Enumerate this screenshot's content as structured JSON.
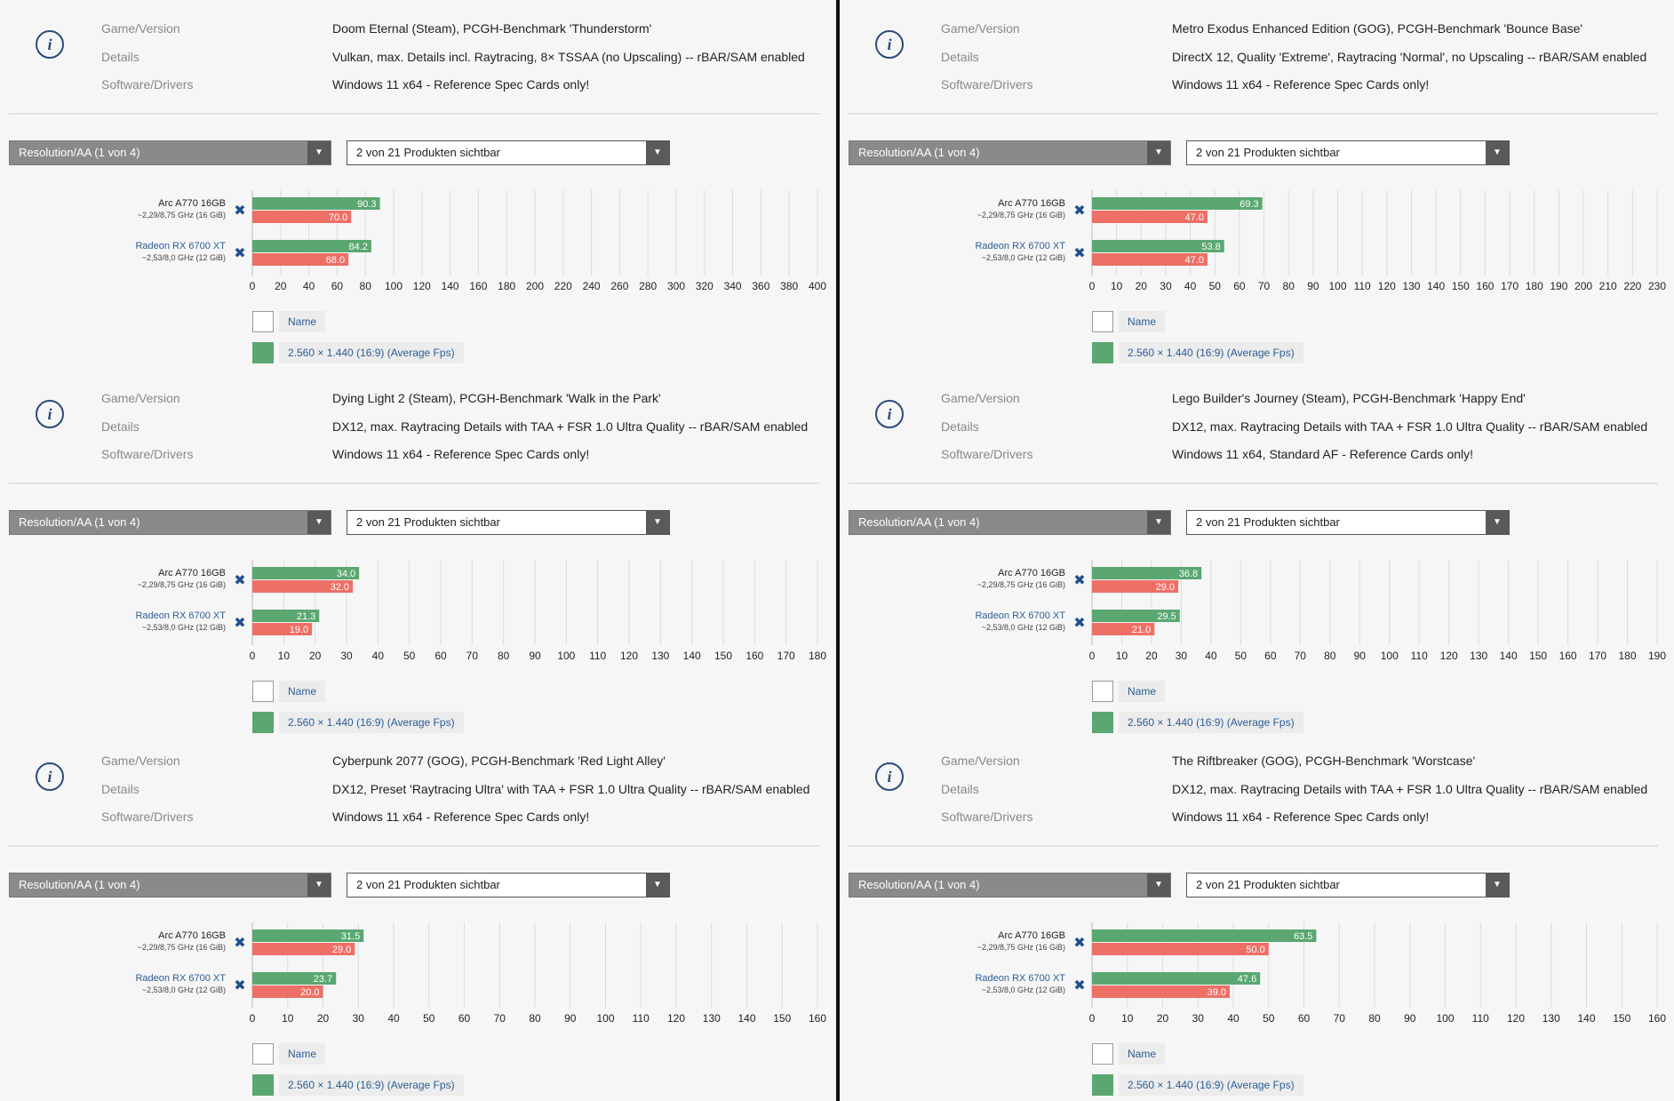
{
  "info_labels": {
    "game": "Game/Version",
    "details": "Details",
    "software": "Software/Drivers"
  },
  "controls": {
    "resolution_label": "Resolution/AA (1 von 4)",
    "products_label": "2 von 21 Produkten sichtbar"
  },
  "legend": {
    "name_label": "Name",
    "series_label": "2.560 × 1.440 (16:9) (Average Fps)"
  },
  "colors": {
    "bar_green": "#5aa771",
    "bar_red": "#ee6f66",
    "link_blue": "#2b5d96",
    "x_icon": "#1f4f8a"
  },
  "products": [
    {
      "name": "Arc A770 16GB",
      "spec": "~2,29/8,75 GHz (16 GiB)"
    },
    {
      "name": "Radeon RX 6700 XT",
      "spec": "~2,53/8,0 GHz (12 GiB)"
    }
  ],
  "panels": [
    {
      "game": "Doom Eternal (Steam), PCGH-Benchmark 'Thunderstorm'",
      "details": "Vulkan, max. Details incl. Raytracing, 8× TSSAA (no Upscaling) -- rBAR/SAM enabled",
      "software": "Windows 11 x64 - Reference Spec Cards only!"
    },
    {
      "game": "Dying Light 2 (Steam), PCGH-Benchmark 'Walk in the Park'",
      "details": "DX12, max. Raytracing Details with TAA + FSR 1.0 Ultra Quality -- rBAR/SAM enabled",
      "software": "Windows 11 x64 - Reference Spec Cards only!"
    },
    {
      "game": "Cyberpunk 2077 (GOG), PCGH-Benchmark 'Red Light Alley'",
      "details": "DX12, Preset 'Raytracing Ultra' with TAA + FSR 1.0 Ultra Quality -- rBAR/SAM enabled",
      "software": "Windows 11 x64 - Reference Spec Cards only!"
    },
    {
      "game": "Metro Exodus Enhanced Edition (GOG), PCGH-Benchmark 'Bounce Base'",
      "details": "DirectX 12, Quality 'Extreme', Raytracing 'Normal', no Upscaling -- rBAR/SAM enabled",
      "software": "Windows 11 x64 - Reference Spec Cards only!"
    },
    {
      "game": "Lego Builder's Journey (Steam), PCGH-Benchmark 'Happy End'",
      "details": "DX12, max. Raytracing Details with TAA + FSR 1.0 Ultra Quality -- rBAR/SAM enabled",
      "software": "Windows 11 x64, Standard AF - Reference Cards only!"
    },
    {
      "game": "The Riftbreaker (GOG), PCGH-Benchmark 'Worstcase'",
      "details": "DX12, max. Raytracing Details with TAA + FSR 1.0 Ultra Quality -- rBAR/SAM enabled",
      "software": "Windows 11 x64 - Reference Spec Cards only!"
    }
  ],
  "chart_data": [
    {
      "type": "bar",
      "categories": [
        "Arc A770 16GB",
        "Radeon RX 6700 XT"
      ],
      "series": [
        {
          "values": [
            90.3,
            84.2
          ]
        },
        {
          "values": [
            70.0,
            68.0
          ]
        }
      ],
      "xlim": [
        0,
        400
      ],
      "xticks": [
        0,
        20,
        40,
        60,
        80,
        100,
        120,
        140,
        160,
        180,
        200,
        220,
        240,
        260,
        280,
        300,
        320,
        340,
        360,
        380,
        400
      ]
    },
    {
      "type": "bar",
      "categories": [
        "Arc A770 16GB",
        "Radeon RX 6700 XT"
      ],
      "series": [
        {
          "values": [
            34.0,
            21.3
          ]
        },
        {
          "values": [
            32.0,
            19.0
          ]
        }
      ],
      "xlim": [
        0,
        180
      ],
      "xticks": [
        0,
        10,
        20,
        30,
        40,
        50,
        60,
        70,
        80,
        90,
        100,
        110,
        120,
        130,
        140,
        150,
        160,
        170,
        180
      ]
    },
    {
      "type": "bar",
      "categories": [
        "Arc A770 16GB",
        "Radeon RX 6700 XT"
      ],
      "series": [
        {
          "values": [
            31.5,
            23.7
          ]
        },
        {
          "values": [
            29.0,
            20.0
          ]
        }
      ],
      "xlim": [
        0,
        160
      ],
      "xticks": [
        0,
        10,
        20,
        30,
        40,
        50,
        60,
        70,
        80,
        90,
        100,
        110,
        120,
        130,
        140,
        150,
        160
      ]
    },
    {
      "type": "bar",
      "categories": [
        "Arc A770 16GB",
        "Radeon RX 6700 XT"
      ],
      "series": [
        {
          "values": [
            69.3,
            53.8
          ]
        },
        {
          "values": [
            47.0,
            47.0
          ]
        }
      ],
      "xlim": [
        0,
        230
      ],
      "xticks": [
        0,
        10,
        20,
        30,
        40,
        50,
        60,
        70,
        80,
        90,
        100,
        110,
        120,
        130,
        140,
        150,
        160,
        170,
        180,
        190,
        200,
        210,
        220,
        230
      ]
    },
    {
      "type": "bar",
      "categories": [
        "Arc A770 16GB",
        "Radeon RX 6700 XT"
      ],
      "series": [
        {
          "values": [
            36.8,
            29.5
          ]
        },
        {
          "values": [
            29.0,
            21.0
          ]
        }
      ],
      "xlim": [
        0,
        190
      ],
      "xticks": [
        0,
        10,
        20,
        30,
        40,
        50,
        60,
        70,
        80,
        90,
        100,
        110,
        120,
        130,
        140,
        150,
        160,
        170,
        180,
        190
      ]
    },
    {
      "type": "bar",
      "categories": [
        "Arc A770 16GB",
        "Radeon RX 6700 XT"
      ],
      "series": [
        {
          "values": [
            63.5,
            47.6
          ]
        },
        {
          "values": [
            50.0,
            39.0
          ]
        }
      ],
      "xlim": [
        0,
        160
      ],
      "xticks": [
        0,
        10,
        20,
        30,
        40,
        50,
        60,
        70,
        80,
        90,
        100,
        110,
        120,
        130,
        140,
        150,
        160
      ]
    }
  ]
}
